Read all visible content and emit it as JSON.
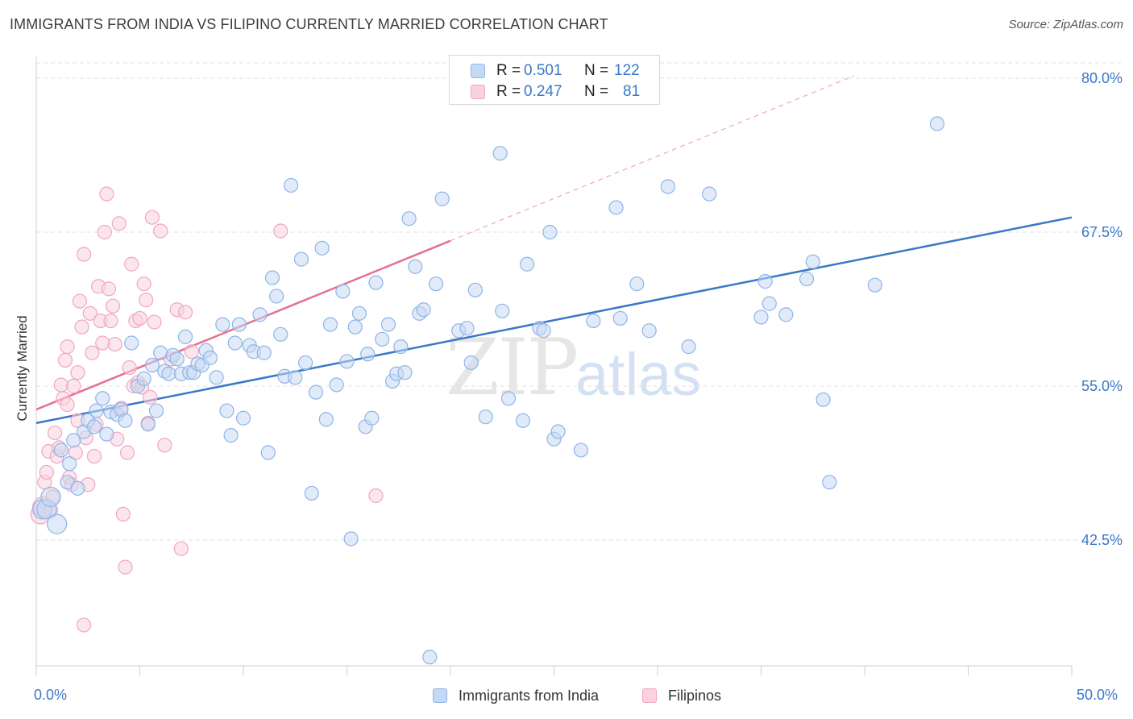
{
  "title": "IMMIGRANTS FROM INDIA VS FILIPINO CURRENTLY MARRIED CORRELATION CHART",
  "source": "Source: ZipAtlas.com",
  "watermark": {
    "part1": "ZIP",
    "part2": "atlas"
  },
  "legend": {
    "rows": [
      {
        "r_label": "R =",
        "r_value": "0.501",
        "n_label": "N =",
        "n_value": "122",
        "color": "#8fb5e8",
        "fill": "#c6d9f3"
      },
      {
        "r_label": "R =",
        "r_value": "0.247",
        "n_label": "N =",
        "n_value": "81",
        "color": "#f0a6c0",
        "fill": "#fad2df"
      }
    ]
  },
  "bottom_legend": [
    {
      "label": "Immigrants from India",
      "color": "#8fb5e8",
      "fill": "#c6d9f3"
    },
    {
      "label": "Filipinos",
      "color": "#f0a6c0",
      "fill": "#fad2df"
    }
  ],
  "x_axis": {
    "min_label": "0.0%",
    "max_label": "50.0%"
  },
  "y_axis": {
    "label": "Currently Married",
    "ticks": [
      "80.0%",
      "67.5%",
      "55.0%",
      "42.5%"
    ]
  },
  "chart_data": {
    "type": "scatter",
    "title": "IMMIGRANTS FROM INDIA VS FILIPINO CURRENTLY MARRIED CORRELATION CHART",
    "xlabel": "",
    "ylabel": "Currently Married",
    "xlim": [
      0,
      50
    ],
    "ylim": [
      32,
      81.5
    ],
    "y_ticks": [
      42.5,
      55.0,
      67.5,
      80.0
    ],
    "grid": "horizontal dashed",
    "legend_position": "top-center",
    "series": [
      {
        "name": "Immigrants from India",
        "color": "#3a78c8",
        "R": 0.501,
        "N": 122,
        "trend": {
          "x": [
            0,
            50
          ],
          "y": [
            52.0,
            68.7
          ],
          "style": "solid"
        },
        "points": [
          [
            0.3,
            45.0
          ],
          [
            0.5,
            45.0
          ],
          [
            0.7,
            46.0
          ],
          [
            1.0,
            43.8
          ],
          [
            1.2,
            49.8
          ],
          [
            1.5,
            47.2
          ],
          [
            1.6,
            48.7
          ],
          [
            1.8,
            50.6
          ],
          [
            2.0,
            46.7
          ],
          [
            2.3,
            51.3
          ],
          [
            2.5,
            52.2
          ],
          [
            2.8,
            51.7
          ],
          [
            2.9,
            53.0
          ],
          [
            3.2,
            54.0
          ],
          [
            3.4,
            51.1
          ],
          [
            3.6,
            52.9
          ],
          [
            3.9,
            52.7
          ],
          [
            4.1,
            53.1
          ],
          [
            4.3,
            52.2
          ],
          [
            4.6,
            58.5
          ],
          [
            4.9,
            55.0
          ],
          [
            5.2,
            55.6
          ],
          [
            5.4,
            51.9
          ],
          [
            5.6,
            56.7
          ],
          [
            5.8,
            53.0
          ],
          [
            6.0,
            57.7
          ],
          [
            6.2,
            56.2
          ],
          [
            6.4,
            56.0
          ],
          [
            6.6,
            57.5
          ],
          [
            6.8,
            57.2
          ],
          [
            7.0,
            56.0
          ],
          [
            7.2,
            59.0
          ],
          [
            7.4,
            56.1
          ],
          [
            7.6,
            56.1
          ],
          [
            7.8,
            56.8
          ],
          [
            8.0,
            56.7
          ],
          [
            8.2,
            57.9
          ],
          [
            8.4,
            57.3
          ],
          [
            8.7,
            55.7
          ],
          [
            9.0,
            60.0
          ],
          [
            9.2,
            53.0
          ],
          [
            9.4,
            51.0
          ],
          [
            9.6,
            58.5
          ],
          [
            9.8,
            60.0
          ],
          [
            10.0,
            52.4
          ],
          [
            10.3,
            58.3
          ],
          [
            10.5,
            57.8
          ],
          [
            10.8,
            60.8
          ],
          [
            11.0,
            57.7
          ],
          [
            11.2,
            49.6
          ],
          [
            11.4,
            63.8
          ],
          [
            11.6,
            62.3
          ],
          [
            11.8,
            59.2
          ],
          [
            12.0,
            55.8
          ],
          [
            12.3,
            71.3
          ],
          [
            12.5,
            55.7
          ],
          [
            12.8,
            65.3
          ],
          [
            13.0,
            56.9
          ],
          [
            13.3,
            46.3
          ],
          [
            13.5,
            54.5
          ],
          [
            13.8,
            66.2
          ],
          [
            14.0,
            52.3
          ],
          [
            14.2,
            60.0
          ],
          [
            14.5,
            55.1
          ],
          [
            14.8,
            62.7
          ],
          [
            15.0,
            57.0
          ],
          [
            15.2,
            42.6
          ],
          [
            15.4,
            59.8
          ],
          [
            15.6,
            60.9
          ],
          [
            15.9,
            51.7
          ],
          [
            16.0,
            57.6
          ],
          [
            16.2,
            52.4
          ],
          [
            16.4,
            63.4
          ],
          [
            16.7,
            58.8
          ],
          [
            17.0,
            60.0
          ],
          [
            17.2,
            55.4
          ],
          [
            17.4,
            56.0
          ],
          [
            17.6,
            58.2
          ],
          [
            17.8,
            56.1
          ],
          [
            18.0,
            68.6
          ],
          [
            18.3,
            64.7
          ],
          [
            18.5,
            60.9
          ],
          [
            18.7,
            61.2
          ],
          [
            19.0,
            33.0
          ],
          [
            19.3,
            63.3
          ],
          [
            19.6,
            70.2
          ],
          [
            20.4,
            59.5
          ],
          [
            20.8,
            59.7
          ],
          [
            21.0,
            56.9
          ],
          [
            21.2,
            62.8
          ],
          [
            21.7,
            52.5
          ],
          [
            22.4,
            73.9
          ],
          [
            22.5,
            61.1
          ],
          [
            22.8,
            54.0
          ],
          [
            23.5,
            52.2
          ],
          [
            23.7,
            64.9
          ],
          [
            24.3,
            59.7
          ],
          [
            24.5,
            59.5
          ],
          [
            24.8,
            67.5
          ],
          [
            25.0,
            50.7
          ],
          [
            25.2,
            51.3
          ],
          [
            26.3,
            49.8
          ],
          [
            26.9,
            60.3
          ],
          [
            28.0,
            69.5
          ],
          [
            28.2,
            60.5
          ],
          [
            29.0,
            63.3
          ],
          [
            29.6,
            59.5
          ],
          [
            30.5,
            71.2
          ],
          [
            31.5,
            58.2
          ],
          [
            32.5,
            70.6
          ],
          [
            35.0,
            60.6
          ],
          [
            35.2,
            63.5
          ],
          [
            35.4,
            61.7
          ],
          [
            36.2,
            60.8
          ],
          [
            37.2,
            63.7
          ],
          [
            37.5,
            65.1
          ],
          [
            38.0,
            53.9
          ],
          [
            38.3,
            47.2
          ],
          [
            40.5,
            63.2
          ],
          [
            43.5,
            76.3
          ]
        ]
      },
      {
        "name": "Filipinos",
        "color": "#e5708f",
        "R": 0.247,
        "N": 81,
        "trend": {
          "x": [
            0,
            20
          ],
          "y": [
            53.1,
            66.8
          ],
          "style": "solid",
          "extension": {
            "x": [
              20,
              39.5
            ],
            "y": [
              66.8,
              80.2
            ],
            "style": "dashed"
          }
        },
        "points": [
          [
            0.2,
            44.6
          ],
          [
            0.3,
            45.2
          ],
          [
            0.4,
            47.2
          ],
          [
            0.5,
            48.0
          ],
          [
            0.6,
            49.7
          ],
          [
            0.7,
            44.9
          ],
          [
            0.8,
            46.0
          ],
          [
            0.9,
            51.2
          ],
          [
            1.0,
            49.3
          ],
          [
            1.1,
            50.0
          ],
          [
            1.2,
            55.1
          ],
          [
            1.3,
            54.0
          ],
          [
            1.4,
            57.1
          ],
          [
            1.5,
            58.2
          ],
          [
            1.5,
            53.5
          ],
          [
            1.6,
            47.6
          ],
          [
            1.7,
            47.0
          ],
          [
            1.8,
            55.0
          ],
          [
            1.9,
            49.6
          ],
          [
            2.0,
            52.2
          ],
          [
            2.0,
            56.1
          ],
          [
            2.1,
            61.9
          ],
          [
            2.2,
            59.8
          ],
          [
            2.3,
            65.7
          ],
          [
            2.3,
            35.6
          ],
          [
            2.4,
            50.8
          ],
          [
            2.5,
            47.0
          ],
          [
            2.6,
            60.9
          ],
          [
            2.7,
            57.7
          ],
          [
            2.8,
            49.3
          ],
          [
            2.9,
            51.9
          ],
          [
            3.0,
            63.1
          ],
          [
            3.1,
            60.3
          ],
          [
            3.2,
            58.5
          ],
          [
            3.3,
            67.5
          ],
          [
            3.4,
            70.6
          ],
          [
            3.5,
            62.9
          ],
          [
            3.6,
            60.3
          ],
          [
            3.7,
            61.5
          ],
          [
            3.8,
            58.4
          ],
          [
            3.9,
            50.7
          ],
          [
            4.0,
            68.2
          ],
          [
            4.1,
            53.2
          ],
          [
            4.2,
            44.6
          ],
          [
            4.3,
            40.3
          ],
          [
            4.4,
            49.6
          ],
          [
            4.5,
            56.5
          ],
          [
            4.6,
            64.9
          ],
          [
            4.7,
            55.0
          ],
          [
            4.8,
            60.3
          ],
          [
            4.9,
            55.3
          ],
          [
            5.0,
            60.5
          ],
          [
            5.1,
            54.9
          ],
          [
            5.2,
            63.3
          ],
          [
            5.3,
            62.0
          ],
          [
            5.4,
            52.0
          ],
          [
            5.5,
            54.1
          ],
          [
            5.6,
            68.7
          ],
          [
            5.7,
            60.2
          ],
          [
            6.0,
            67.6
          ],
          [
            6.2,
            50.2
          ],
          [
            6.5,
            57.2
          ],
          [
            6.8,
            61.2
          ],
          [
            7.0,
            41.8
          ],
          [
            7.2,
            61.0
          ],
          [
            7.5,
            57.8
          ],
          [
            11.8,
            67.6
          ],
          [
            16.4,
            46.1
          ]
        ]
      }
    ]
  }
}
